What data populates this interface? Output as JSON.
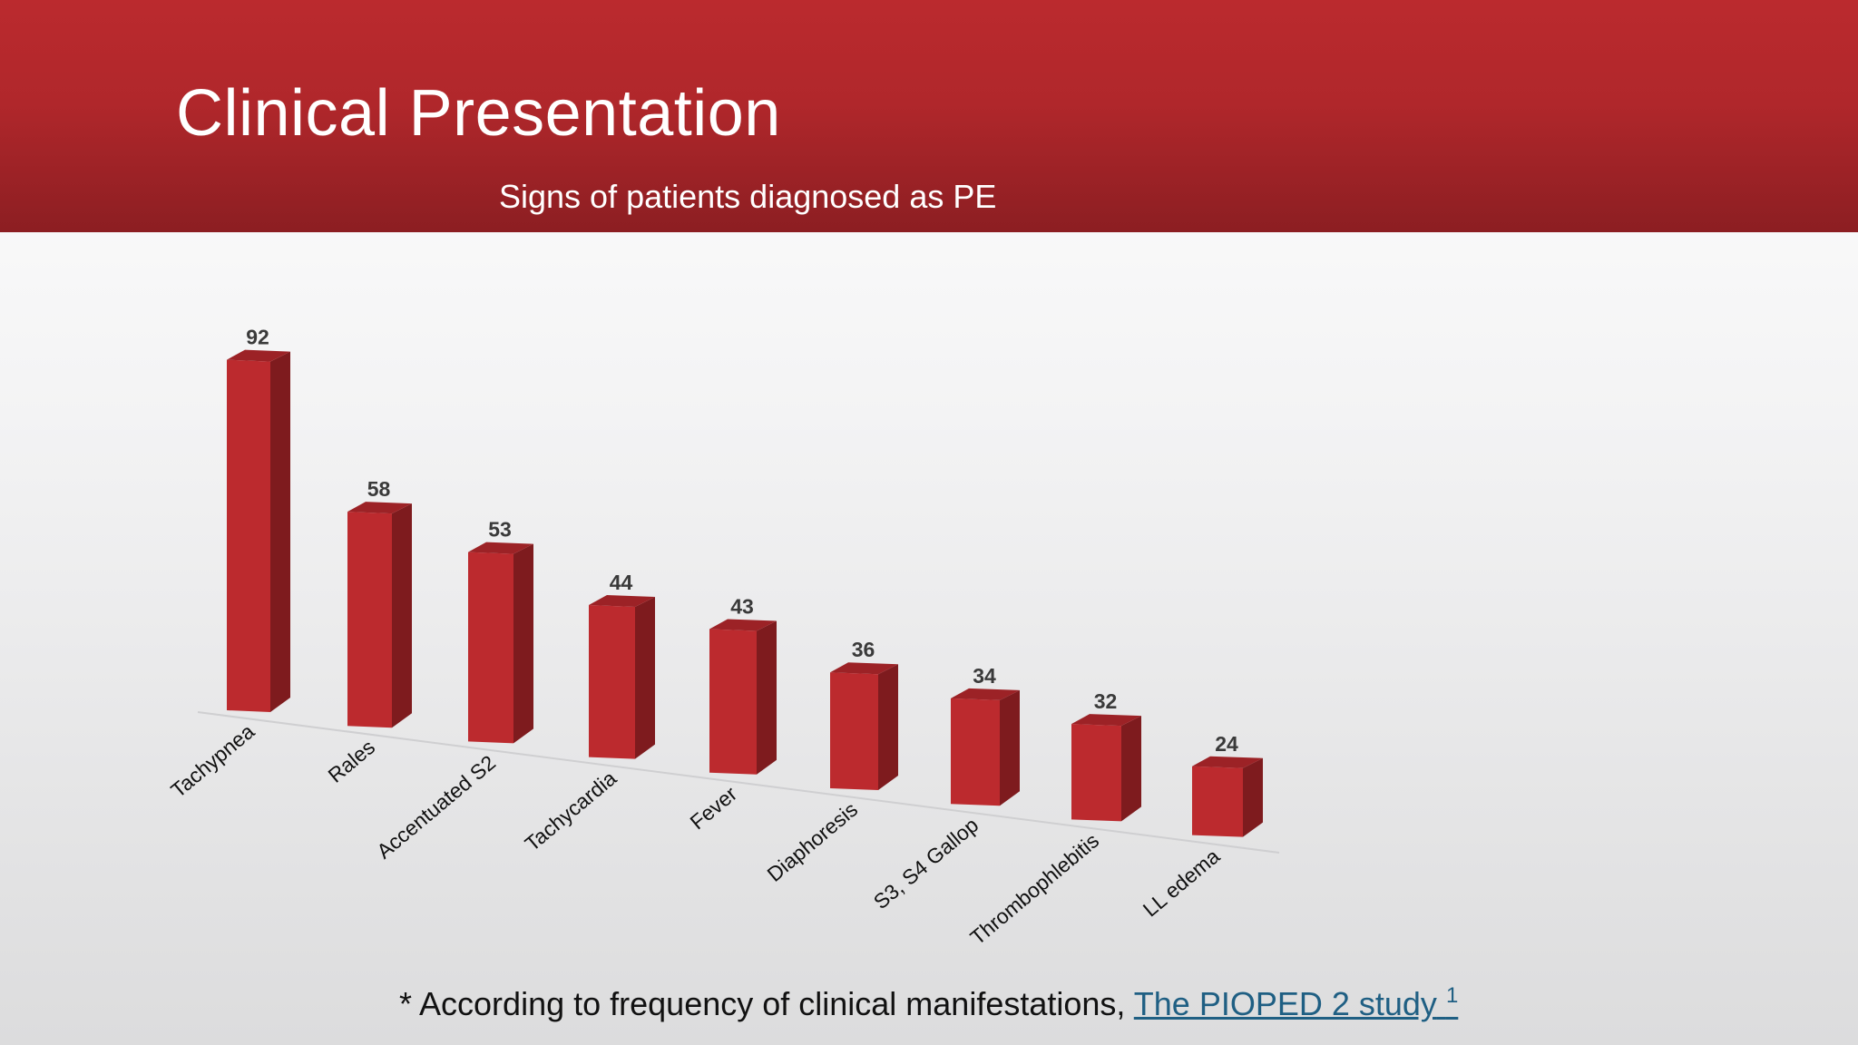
{
  "slide": {
    "title": "Clinical Presentation",
    "subtitle": "Signs of patients diagnosed as PE"
  },
  "footnote": {
    "prefix": "* According to frequency of clinical manifestations, ",
    "link_text": "The PIOPED 2 study",
    "superscript": "1"
  },
  "colors": {
    "header": "#b0272b",
    "bar_front": "#bc2a2e",
    "bar_side": "#7e1b1e",
    "bar_top": "#9c2226",
    "link": "#1f5f83"
  },
  "chart_data": {
    "type": "bar",
    "title": "Signs of patients diagnosed as PE",
    "categories": [
      "Tachypnea",
      "Rales",
      "Accentuated S2",
      "Tachycardia",
      "Fever",
      "Diaphoresis",
      "S3, S4 Gallop",
      "Thrombophlebitis",
      "LL edema"
    ],
    "values": [
      92,
      58,
      53,
      44,
      43,
      36,
      34,
      32,
      24
    ],
    "data_labels": [
      "92",
      "58",
      "53",
      "44",
      "43",
      "36",
      "34",
      "32",
      "24"
    ],
    "xlabel": "",
    "ylabel": "",
    "ylim": [
      0,
      100
    ],
    "grid": false,
    "legend": "none",
    "style": "3d-perspective"
  }
}
